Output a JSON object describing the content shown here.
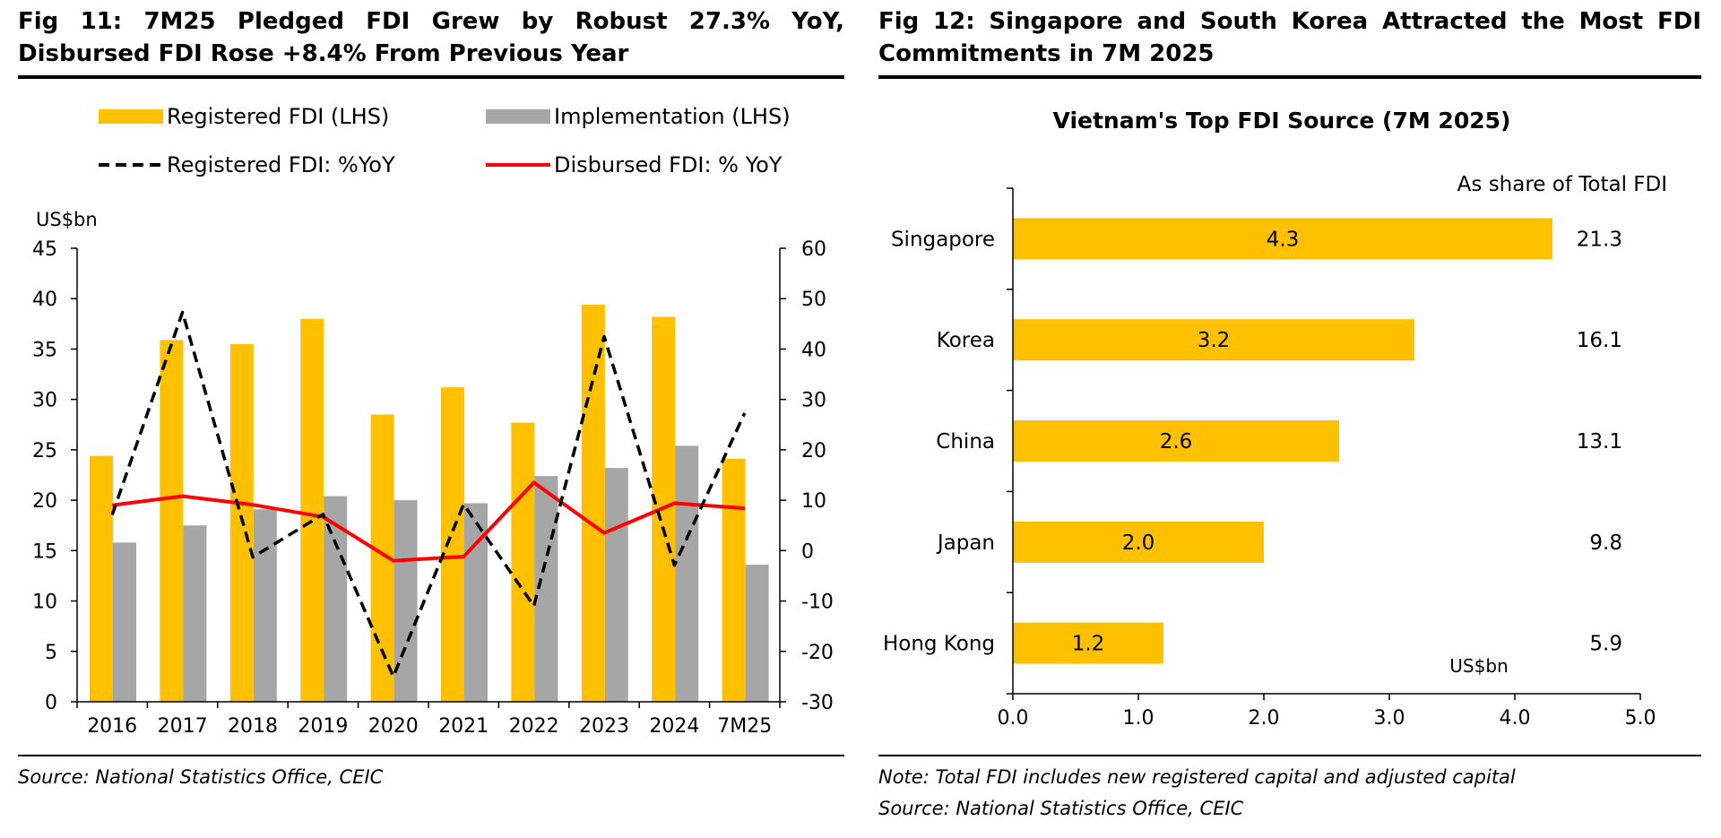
{
  "fig11": {
    "title": "Fig 11: 7M25 Pledged FDI Grew by Robust 27.3% YoY, Disbursed FDI Rose +8.4% From Previous Year",
    "source": "Source: National Statistics Office, CEIC"
  },
  "fig12": {
    "title": "Fig 12: Singapore and South Korea Attracted the Most FDI Commitments in 7M 2025",
    "note": "Note: Total FDI includes new registered capital and adjusted capital",
    "source": "Source: National Statistics Office, CEIC"
  },
  "colors": {
    "registered": "#FFC000",
    "implementation": "#A6A6A6",
    "yoy_registered": "#000000",
    "yoy_disbursed": "#FF0000"
  },
  "chart_data": [
    {
      "type": "bar",
      "title": "",
      "legend_position": "top",
      "ylabel": "US$bn",
      "ylim": [
        0,
        45
      ],
      "yticks": [
        0,
        5,
        10,
        15,
        20,
        25,
        30,
        35,
        40,
        45
      ],
      "y2lim": [
        -30,
        60
      ],
      "y2ticks": [
        -30,
        -20,
        -10,
        0,
        10,
        20,
        30,
        40,
        50,
        60
      ],
      "categories": [
        "2016",
        "2017",
        "2018",
        "2019",
        "2020",
        "2021",
        "2022",
        "2023",
        "2024",
        "7M25"
      ],
      "series": [
        {
          "name": "Registered FDI (LHS)",
          "kind": "bar",
          "axis": "left",
          "values": [
            24.4,
            35.9,
            35.5,
            38.0,
            28.5,
            31.2,
            27.7,
            39.4,
            38.2,
            24.1
          ]
        },
        {
          "name": "Implementation (LHS)",
          "kind": "bar",
          "axis": "left",
          "values": [
            15.8,
            17.5,
            19.1,
            20.4,
            20.0,
            19.7,
            22.4,
            23.2,
            25.4,
            13.6
          ]
        },
        {
          "name": "Registered FDI: %YoY",
          "kind": "line",
          "style": "dashed",
          "axis": "right",
          "values": [
            7.1,
            47.3,
            -1.3,
            7.2,
            -25.0,
            9.2,
            -11.0,
            42.5,
            -2.9,
            27.3
          ]
        },
        {
          "name": "Disbursed FDI: % YoY",
          "kind": "line",
          "style": "solid",
          "axis": "right",
          "values": [
            9.0,
            10.8,
            9.1,
            6.7,
            -2.0,
            -1.2,
            13.5,
            3.5,
            9.4,
            8.4
          ]
        }
      ],
      "grid": false
    },
    {
      "type": "bar",
      "orientation": "horizontal",
      "title": "Vietnam's Top FDI Source (7M 2025)",
      "value_unit_label": "US$bn",
      "share_header": "As share of Total FDI",
      "categories": [
        "Singapore",
        "Korea",
        "China",
        "Japan",
        "Hong Kong"
      ],
      "values": [
        4.3,
        3.2,
        2.6,
        2.0,
        1.2
      ],
      "value_labels": [
        "4.3",
        "3.2",
        "2.6",
        "2.0",
        "1.2"
      ],
      "share_labels": [
        "21.3",
        "16.1",
        "13.1",
        "9.8",
        "5.9"
      ],
      "xlim": [
        0,
        5
      ],
      "xticks": [
        "0.0",
        "1.0",
        "2.0",
        "3.0",
        "4.0",
        "5.0"
      ],
      "grid": false
    }
  ]
}
